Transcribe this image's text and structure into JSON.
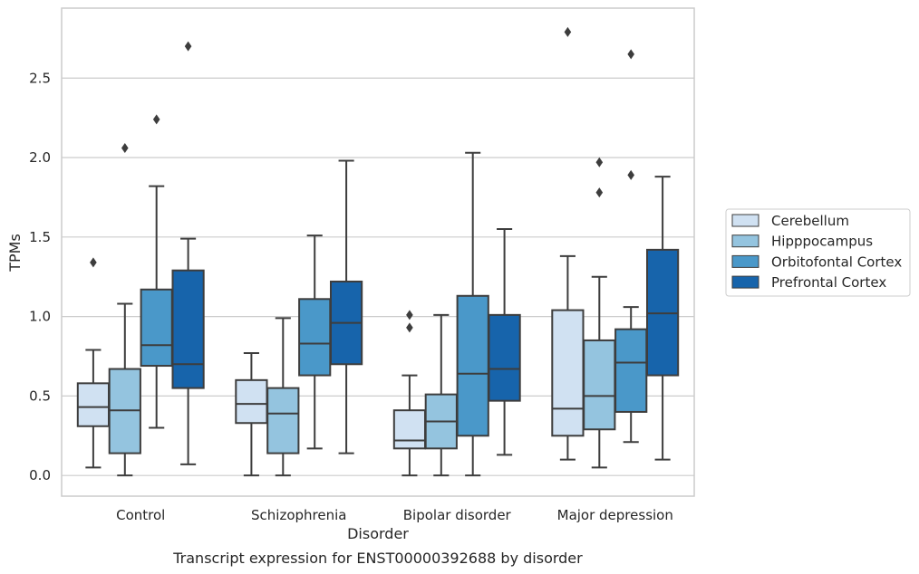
{
  "chart_data": {
    "type": "box",
    "xlabel": "Disorder",
    "ylabel": "TPMs",
    "caption": "Transcript expression for ENST00000392688 by disorder",
    "ylim": [
      -0.13,
      2.94
    ],
    "yticks": [
      "0.0",
      "0.5",
      "1.0",
      "1.5",
      "2.0",
      "2.5"
    ],
    "grid": "horizontal",
    "legend_position": "right",
    "categories": [
      "Control",
      "Schizophrenia",
      "Bipolar disorder",
      "Major depression"
    ],
    "series": [
      {
        "name": "Cerebellum",
        "color": "#d0e1f2",
        "boxes": [
          {
            "whisker_low": 0.05,
            "q1": 0.31,
            "median": 0.43,
            "q3": 0.58,
            "whisker_high": 0.79,
            "outliers": [
              1.34
            ]
          },
          {
            "whisker_low": 0.0,
            "q1": 0.33,
            "median": 0.45,
            "q3": 0.6,
            "whisker_high": 0.77,
            "outliers": []
          },
          {
            "whisker_low": 0.0,
            "q1": 0.17,
            "median": 0.22,
            "q3": 0.41,
            "whisker_high": 0.63,
            "outliers": [
              0.93,
              1.01
            ]
          },
          {
            "whisker_low": 0.1,
            "q1": 0.25,
            "median": 0.42,
            "q3": 1.04,
            "whisker_high": 1.38,
            "outliers": [
              2.79
            ]
          }
        ]
      },
      {
        "name": "Hipppocampus",
        "color": "#94c4df",
        "boxes": [
          {
            "whisker_low": 0.0,
            "q1": 0.14,
            "median": 0.41,
            "q3": 0.67,
            "whisker_high": 1.08,
            "outliers": [
              2.06
            ]
          },
          {
            "whisker_low": 0.0,
            "q1": 0.14,
            "median": 0.39,
            "q3": 0.55,
            "whisker_high": 0.99,
            "outliers": []
          },
          {
            "whisker_low": 0.0,
            "q1": 0.17,
            "median": 0.34,
            "q3": 0.51,
            "whisker_high": 1.01,
            "outliers": []
          },
          {
            "whisker_low": 0.05,
            "q1": 0.29,
            "median": 0.5,
            "q3": 0.85,
            "whisker_high": 1.25,
            "outliers": [
              1.78,
              1.97
            ]
          }
        ]
      },
      {
        "name": "Orbitofontal Cortex",
        "color": "#4a98c9",
        "boxes": [
          {
            "whisker_low": 0.3,
            "q1": 0.69,
            "median": 0.82,
            "q3": 1.17,
            "whisker_high": 1.82,
            "outliers": [
              2.24
            ]
          },
          {
            "whisker_low": 0.17,
            "q1": 0.63,
            "median": 0.83,
            "q3": 1.11,
            "whisker_high": 1.51,
            "outliers": []
          },
          {
            "whisker_low": 0.0,
            "q1": 0.25,
            "median": 0.64,
            "q3": 1.13,
            "whisker_high": 2.03,
            "outliers": []
          },
          {
            "whisker_low": 0.21,
            "q1": 0.4,
            "median": 0.71,
            "q3": 0.92,
            "whisker_high": 1.06,
            "outliers": [
              1.89,
              2.65
            ]
          }
        ]
      },
      {
        "name": "Prefrontal Cortex",
        "color": "#1764ab",
        "boxes": [
          {
            "whisker_low": 0.07,
            "q1": 0.55,
            "median": 0.7,
            "q3": 1.29,
            "whisker_high": 1.49,
            "outliers": [
              2.7
            ]
          },
          {
            "whisker_low": 0.14,
            "q1": 0.7,
            "median": 0.96,
            "q3": 1.22,
            "whisker_high": 1.98,
            "outliers": []
          },
          {
            "whisker_low": 0.13,
            "q1": 0.47,
            "median": 0.67,
            "q3": 1.01,
            "whisker_high": 1.55,
            "outliers": []
          },
          {
            "whisker_low": 0.1,
            "q1": 0.63,
            "median": 1.02,
            "q3": 1.42,
            "whisker_high": 1.88,
            "outliers": []
          }
        ]
      }
    ]
  }
}
